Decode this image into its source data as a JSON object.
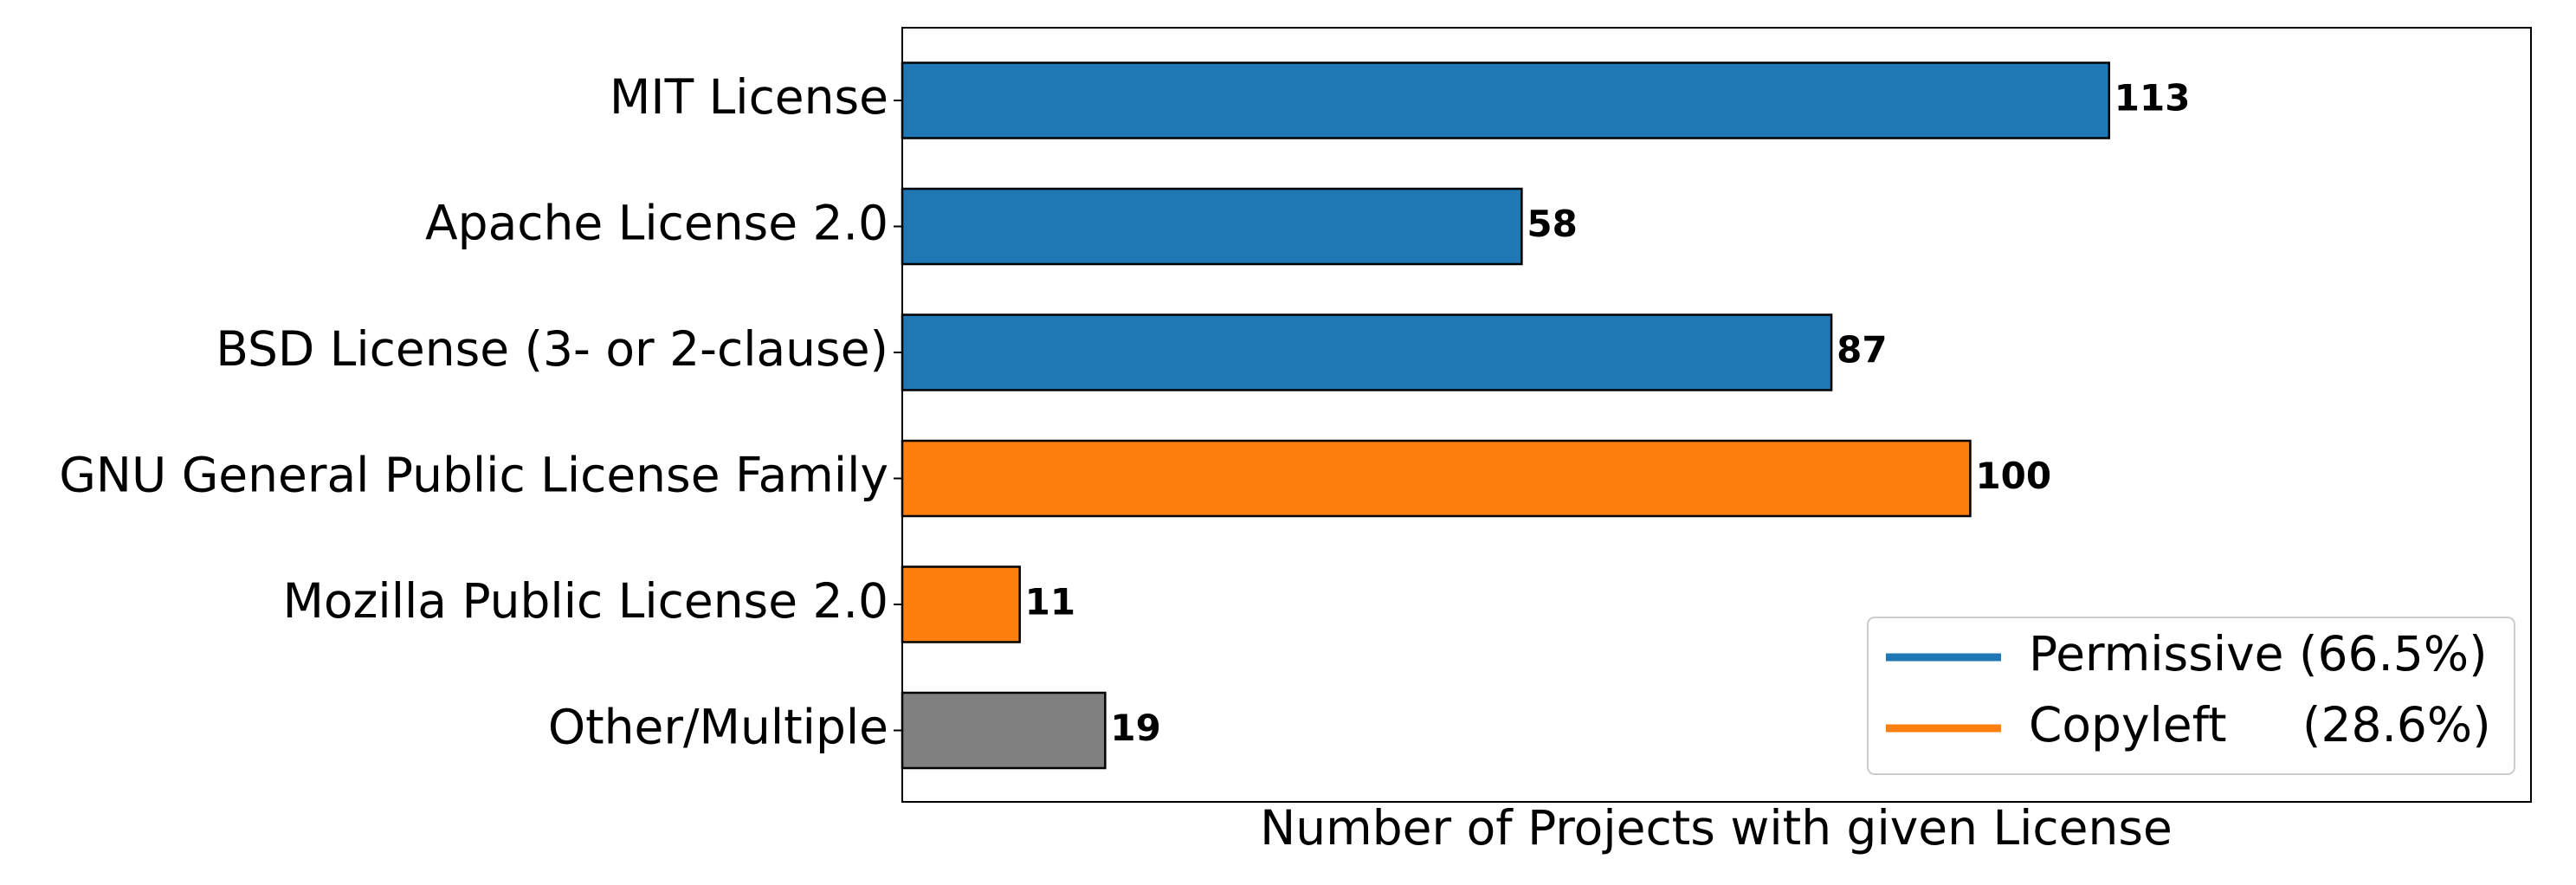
{
  "chart_data": {
    "type": "barh",
    "xlabel": "Number of Projects with given License",
    "categories": [
      "MIT License",
      "Apache License 2.0",
      "BSD License (3- or 2-clause)",
      "GNU General Public License Family",
      "Mozilla Public License 2.0",
      "Other/Multiple"
    ],
    "values": [
      113,
      58,
      87,
      100,
      11,
      19
    ],
    "colors": [
      "#1f77b4",
      "#1f77b4",
      "#1f77b4",
      "#ff7f0e",
      "#ff7f0e",
      "#808080"
    ],
    "xlim": [
      0,
      152.5
    ],
    "legend": [
      {
        "label": "Permissive (66.5%)",
        "color": "#1f77b4"
      },
      {
        "label": "Copyleft     (28.6%)",
        "color": "#ff7f0e"
      }
    ],
    "legend_loc": "lower right"
  }
}
